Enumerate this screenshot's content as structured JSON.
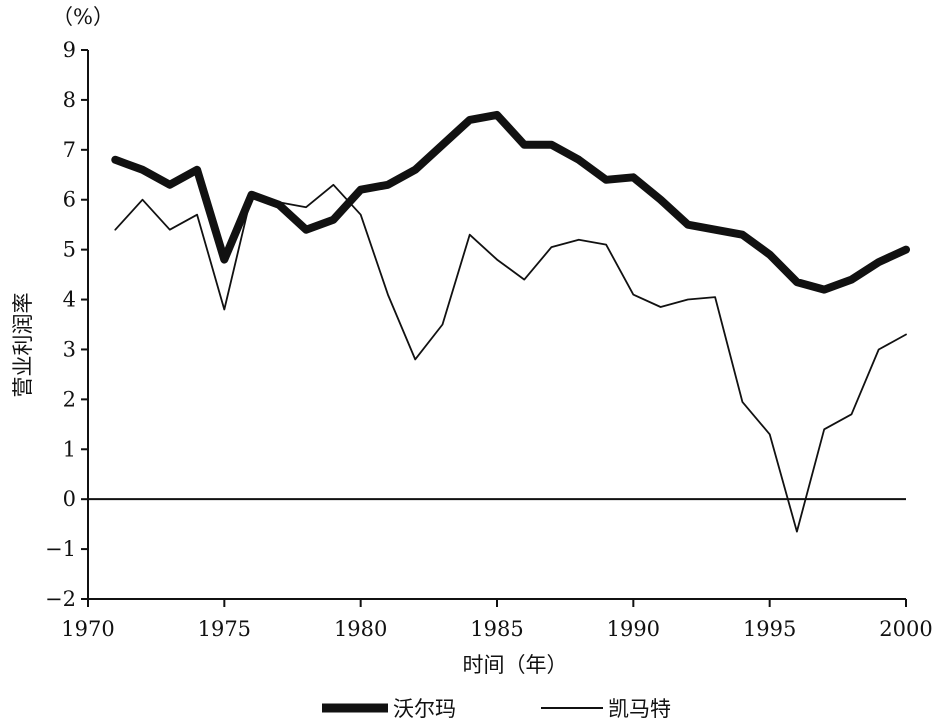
{
  "chart_data": {
    "type": "line",
    "unit_label": "（%）",
    "ylabel": "营业利润率",
    "xlabel": "时间（年）",
    "xlim": [
      1970,
      2000
    ],
    "ylim": [
      -2,
      9
    ],
    "x_ticks": [
      "1970",
      "1975",
      "1980",
      "1985",
      "1990",
      "1995",
      "2000"
    ],
    "y_ticks": [
      "9",
      "8",
      "7",
      "6",
      "5",
      "4",
      "3",
      "2",
      "1",
      "0",
      "−1",
      "−2"
    ],
    "zero_line": true,
    "legend_position": "bottom",
    "series": [
      {
        "name": "沃尔玛",
        "style": "thick",
        "color": "#111111",
        "x": [
          1971,
          1972,
          1973,
          1974,
          1975,
          1976,
          1977,
          1978,
          1979,
          1980,
          1981,
          1982,
          1983,
          1984,
          1985,
          1986,
          1987,
          1988,
          1989,
          1990,
          1991,
          1992,
          1993,
          1994,
          1995,
          1996,
          1997,
          1998,
          1999,
          2000
        ],
        "values": [
          6.8,
          6.6,
          6.3,
          6.6,
          4.8,
          6.1,
          5.9,
          5.4,
          5.6,
          6.2,
          6.3,
          6.6,
          7.1,
          7.6,
          7.7,
          7.1,
          7.1,
          6.8,
          6.4,
          6.45,
          6.0,
          5.5,
          5.4,
          5.3,
          4.9,
          4.35,
          4.2,
          4.4,
          4.75,
          5.0
        ]
      },
      {
        "name": "凯马特",
        "style": "thin",
        "color": "#111111",
        "x": [
          1971,
          1972,
          1973,
          1974,
          1975,
          1976,
          1977,
          1978,
          1979,
          1980,
          1981,
          1982,
          1983,
          1984,
          1985,
          1986,
          1987,
          1988,
          1989,
          1990,
          1991,
          1992,
          1993,
          1994,
          1995,
          1996,
          1997,
          1998,
          1999,
          2000
        ],
        "values": [
          5.4,
          6.0,
          5.4,
          5.7,
          3.8,
          6.1,
          5.95,
          5.85,
          6.3,
          5.7,
          4.1,
          2.8,
          3.5,
          5.3,
          4.8,
          4.4,
          5.05,
          5.2,
          5.1,
          4.1,
          3.85,
          4.0,
          4.05,
          1.95,
          1.3,
          -0.65,
          1.4,
          1.7,
          3.0,
          3.3
        ]
      }
    ]
  }
}
